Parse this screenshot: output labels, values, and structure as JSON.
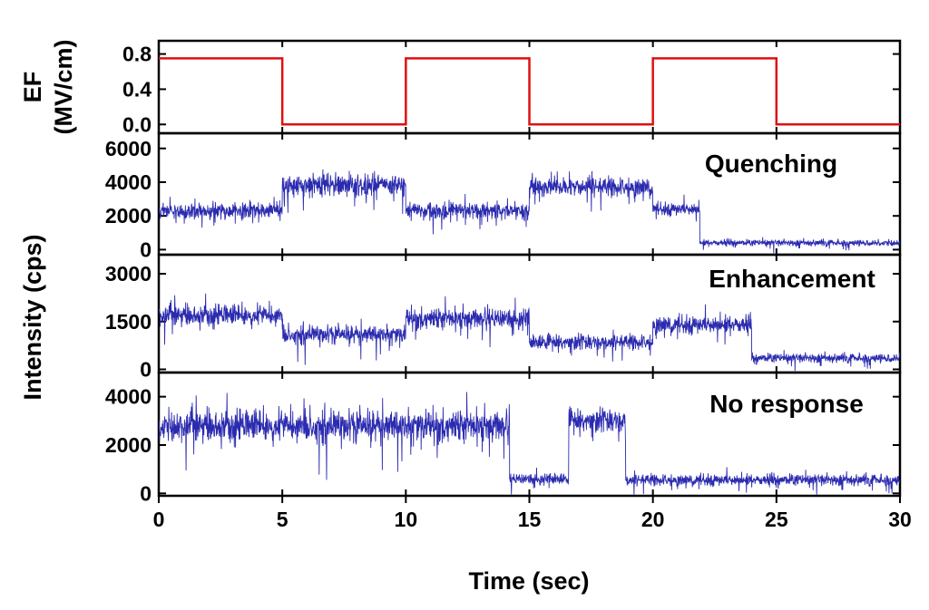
{
  "chart_data": [
    {
      "type": "line",
      "ylabel_lines": [
        "EF",
        "(MV/cm)"
      ],
      "yticks": [
        0.0,
        0.4,
        0.8
      ],
      "ytick_labels": [
        "0.0",
        "0.4",
        "0.8"
      ],
      "ylim": [
        -0.1,
        0.95
      ],
      "xlim": [
        0,
        30
      ],
      "colors": {
        "series": "#dd1111"
      },
      "series": [
        {
          "x": [
            0,
            5,
            5,
            10,
            10,
            15,
            15,
            20,
            20,
            25,
            25,
            30
          ],
          "values": [
            0.75,
            0.75,
            0,
            0,
            0.75,
            0.75,
            0,
            0,
            0.75,
            0.75,
            0,
            0
          ]
        }
      ]
    },
    {
      "type": "line",
      "annotation": "Quenching",
      "yticks": [
        0,
        2000,
        4000,
        6000
      ],
      "ytick_labels": [
        "0",
        "2000",
        "4000",
        "6000"
      ],
      "ylim": [
        -300,
        6900
      ],
      "xlim": [
        0,
        30
      ],
      "colors": {
        "series": "#2b2bb0"
      },
      "segments": [
        {
          "x_start": 0,
          "x_end": 5,
          "mean": 2300,
          "spread": 500
        },
        {
          "x_start": 5,
          "x_end": 10,
          "mean": 3800,
          "spread": 700
        },
        {
          "x_start": 10,
          "x_end": 15,
          "mean": 2300,
          "spread": 500
        },
        {
          "x_start": 15,
          "x_end": 20,
          "mean": 3700,
          "spread": 600
        },
        {
          "x_start": 20,
          "x_end": 21.9,
          "mean": 2400,
          "spread": 400
        },
        {
          "x_start": 21.9,
          "x_end": 30,
          "mean": 400,
          "spread": 200
        }
      ]
    },
    {
      "type": "line",
      "annotation": "Enhancement",
      "yticks": [
        0,
        1500,
        3000
      ],
      "ytick_labels": [
        "0",
        "1500",
        "3000"
      ],
      "ylim": [
        -100,
        3600
      ],
      "xlim": [
        0,
        30
      ],
      "colors": {
        "series": "#2b2bb0"
      },
      "segments": [
        {
          "x_start": 0,
          "x_end": 5,
          "mean": 1700,
          "spread": 350
        },
        {
          "x_start": 5,
          "x_end": 10,
          "mean": 1100,
          "spread": 300
        },
        {
          "x_start": 10,
          "x_end": 15,
          "mean": 1600,
          "spread": 350
        },
        {
          "x_start": 15,
          "x_end": 20,
          "mean": 850,
          "spread": 250
        },
        {
          "x_start": 20,
          "x_end": 24,
          "mean": 1400,
          "spread": 300
        },
        {
          "x_start": 24,
          "x_end": 30,
          "mean": 350,
          "spread": 150
        }
      ]
    },
    {
      "type": "line",
      "annotation": "No response",
      "xlabel": "Time (sec)",
      "xticks": [
        0,
        5,
        10,
        15,
        20,
        25,
        30
      ],
      "xtick_labels": [
        "0",
        "5",
        "10",
        "15",
        "20",
        "25",
        "30"
      ],
      "yticks": [
        0,
        2000,
        4000
      ],
      "ytick_labels": [
        "0",
        "2000",
        "4000"
      ],
      "ylim": [
        -100,
        5000
      ],
      "xlim": [
        0,
        30
      ],
      "colors": {
        "series": "#2b2bb0"
      },
      "segments": [
        {
          "x_start": 0,
          "x_end": 14.2,
          "mean": 2800,
          "spread": 700
        },
        {
          "x_start": 14.2,
          "x_end": 16.6,
          "mean": 600,
          "spread": 250
        },
        {
          "x_start": 16.6,
          "x_end": 18.9,
          "mean": 3000,
          "spread": 500
        },
        {
          "x_start": 18.9,
          "x_end": 30,
          "mean": 550,
          "spread": 250
        }
      ]
    }
  ],
  "shared_ylabel": "Intensity (cps)"
}
